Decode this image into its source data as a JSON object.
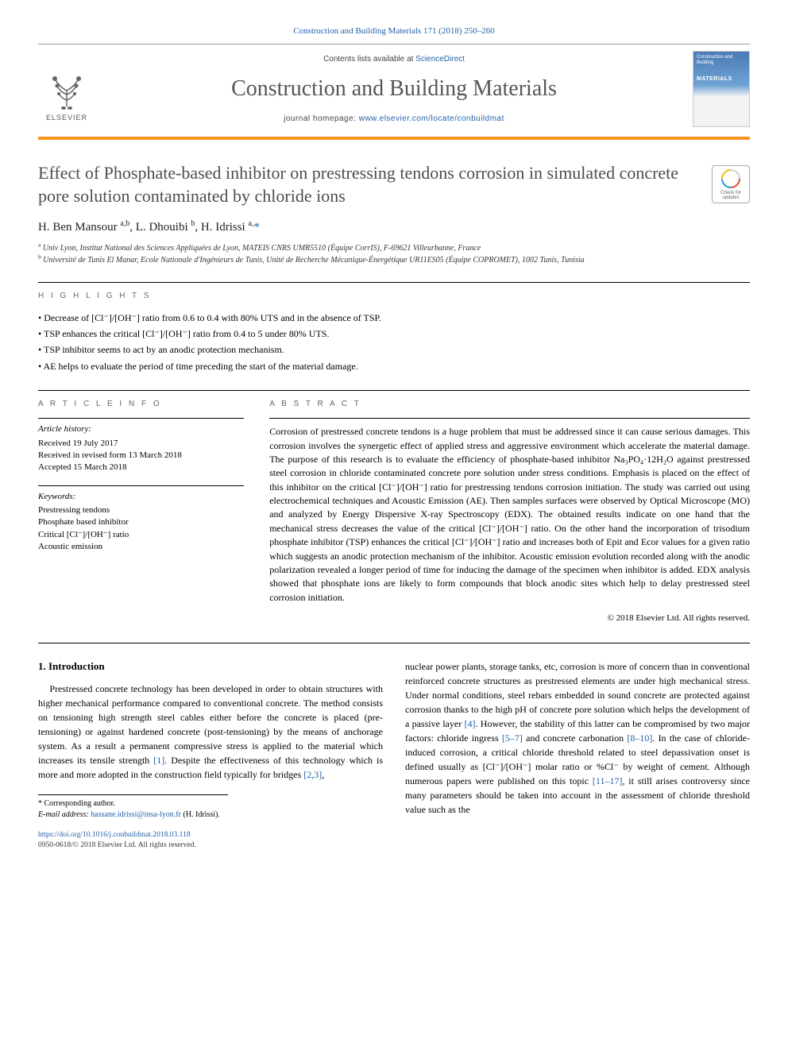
{
  "header": {
    "journal_ref": "Construction and Building Materials 171 (2018) 250–260",
    "contents_prefix": "Contents lists available at ",
    "contents_link": "ScienceDirect",
    "journal_title": "Construction and Building Materials",
    "homepage_prefix": "journal homepage: ",
    "homepage_link": "www.elsevier.com/locate/conbuildmat",
    "publisher_label": "ELSEVIER",
    "cover_line1": "Construction and Building",
    "cover_line2": "MATERIALS",
    "crossmark_text": "Check for updates"
  },
  "article": {
    "title": "Effect of Phosphate-based inhibitor on prestressing tendons corrosion in simulated concrete pore solution contaminated by chloride ions",
    "authors_html": "H. Ben Mansour <sup>a,b</sup>, L. Dhouibi <sup>b</sup>, H. Idrissi <sup>a,</sup>",
    "corr_symbol": "*",
    "affiliations": {
      "a": "Univ Lyon, Institut National des Sciences Appliquées de Lyon, MATEIS CNRS UMR5510 (Équipe CorrIS), F-69621 Villeurbanne, France",
      "b": "Université de Tunis El Manar, Ecole Nationale d'Ingénieurs de Tunis, Unité de Recherche Mécanique-Énergétique UR11ES05 (Équipe COPROMET), 1002 Tunis, Tunisia"
    }
  },
  "highlights": {
    "label": "H I G H L I G H T S",
    "items": [
      "Decrease of [Cl⁻]/[OH⁻] ratio from 0.6 to 0.4 with 80% UTS and in the absence of TSP.",
      "TSP enhances the critical [Cl⁻]/[OH⁻] ratio from 0.4 to 5 under 80% UTS.",
      "TSP inhibitor seems to act by an anodic protection mechanism.",
      "AE helps to evaluate the period of time preceding the start of the material damage."
    ]
  },
  "articleinfo": {
    "label": "A R T I C L E   I N F O",
    "history_heading": "Article history:",
    "history": [
      "Received 19 July 2017",
      "Received in revised form 13 March 2018",
      "Accepted 15 March 2018"
    ],
    "keywords_heading": "Keywords:",
    "keywords": [
      "Prestressing tendons",
      "Phosphate based inhibitor",
      "Critical [Cl⁻]/[OH⁻] ratio",
      "Acoustic emission"
    ]
  },
  "abstract": {
    "label": "A B S T R A C T",
    "text": "Corrosion of prestressed concrete tendons is a huge problem that must be addressed since it can cause serious damages. This corrosion involves the synergetic effect of applied stress and aggressive environment which accelerate the material damage. The purpose of this research is to evaluate the efficiency of phosphate-based inhibitor Na₃PO₄·12H₂O against prestressed steel corrosion in chloride contaminated concrete pore solution under stress conditions. Emphasis is placed on the effect of this inhibitor on the critical [Cl⁻]/[OH⁻] ratio for prestressing tendons corrosion initiation. The study was carried out using electrochemical techniques and Acoustic Emission (AE). Then samples surfaces were observed by Optical Microscope (MO) and analyzed by Energy Dispersive X-ray Spectroscopy (EDX). The obtained results indicate on one hand that the mechanical stress decreases the value of the critical [Cl⁻]/[OH⁻] ratio. On the other hand the incorporation of trisodium phosphate inhibitor (TSP) enhances the critical [Cl⁻]/[OH⁻] ratio and increases both of Epit and Ecor values for a given ratio which suggests an anodic protection mechanism of the inhibitor. Acoustic emission evolution recorded along with the anodic polarization revealed a longer period of time for inducing the damage of the specimen when inhibitor is added. EDX analysis showed that phosphate ions are likely to form compounds that block anodic sites which help to delay prestressed steel corrosion initiation.",
    "copyright": "© 2018 Elsevier Ltd. All rights reserved."
  },
  "body": {
    "heading": "1. Introduction",
    "left_para": "Prestressed concrete technology has been developed in order to obtain structures with higher mechanical performance compared to conventional concrete. The method consists on tensioning high strength steel cables either before the concrete is placed (pre-tensioning) or against hardened concrete (post-tensioning) by the means of anchorage system. As a result a permanent compressive stress is applied to the material which increases its tensile strength [1]. Despite the effectiveness of this technology which is more and more adopted in the construction field typically for bridges [2,3],",
    "right_para": "nuclear power plants, storage tanks, etc, corrosion is more of concern than in conventional reinforced concrete structures as prestressed elements are under high mechanical stress. Under normal conditions, steel rebars embedded in sound concrete are protected against corrosion thanks to the high pH of concrete pore solution which helps the development of a passive layer [4]. However, the stability of this latter can be compromised by two major factors: chloride ingress [5–7] and concrete carbonation [8–10]. In the case of chloride-induced corrosion, a critical chloride threshold related to steel depassivation onset is defined usually as [Cl⁻]/[OH⁻] molar ratio or %Cl⁻ by weight of cement. Although numerous papers were published on this topic [11–17], it still arises controversy since many parameters should be taken into account in the assessment of chloride threshold value such as the",
    "refs": {
      "r1": "[1]",
      "r23": "[2,3]",
      "r4": "[4]",
      "r57": "[5–7]",
      "r810": "[8–10]",
      "r1117": "[11–17]"
    }
  },
  "footnotes": {
    "corr_label": "* Corresponding author.",
    "email_label": "E-mail address: ",
    "email": "hassane.idrissi@insa-lyon.fr",
    "email_author": " (H. Idrissi)."
  },
  "footer": {
    "doi": "https://doi.org/10.1016/j.conbuildmat.2018.03.118",
    "issn_line": "0950-0618/© 2018 Elsevier Ltd. All rights reserved."
  },
  "colors": {
    "accent_orange": "#f7941d",
    "link_blue": "#2262a8",
    "title_gray": "#4d4d4d"
  }
}
